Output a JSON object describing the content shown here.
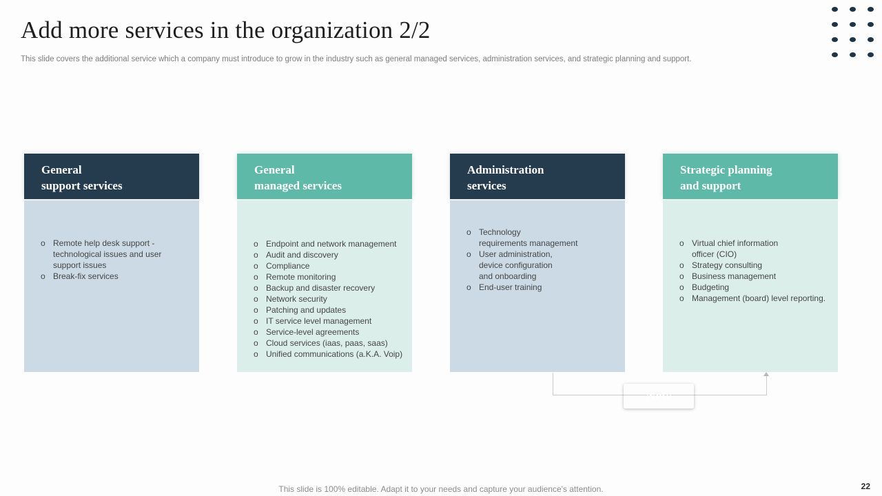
{
  "slide": {
    "title": "Add more services in the organization 2/2",
    "subtitle": "This slide covers the additional service which a company must introduce to grow in the industry such as general managed services, administration services, and strategic planning and support.",
    "footer": "This slide is 100% editable. Adapt it to your needs and capture your audience's attention.",
    "page_number": "22",
    "new_label": "New",
    "bullet_marker": "o"
  },
  "colors": {
    "navy": "#253C4F",
    "teal": "#5FB9A8",
    "navy_body": "#CBDAE4",
    "teal_body": "#DCEEE9",
    "dots": "#1D3447",
    "connector": "#C9CCCC"
  },
  "decoration_dots": {
    "rows": 4,
    "cols": 3
  },
  "columns": [
    {
      "theme": "navy",
      "title": "General\nsupport services",
      "items": [
        "Remote help desk support -\ntechnological issues and user\nsupport issues",
        "Break-fix services"
      ]
    },
    {
      "theme": "teal",
      "title": "General\nmanaged services",
      "items": [
        "Endpoint and network management",
        "Audit and discovery",
        "Compliance",
        "Remote monitoring",
        "Backup and disaster recovery",
        "Network security",
        "Patching and updates",
        "IT service level management",
        "Service-level agreements",
        "Cloud services (iaas, paas, saas)",
        "Unified communications (a.K.A. Voip)"
      ]
    },
    {
      "theme": "navy",
      "title": "Administration\nservices",
      "items": [
        "Technology\nrequirements management",
        "User administration,\ndevice configuration\nand onboarding",
        "End-user training"
      ]
    },
    {
      "theme": "teal",
      "title": "Strategic planning\nand support",
      "items": [
        "Virtual chief information\nofficer (CIO)",
        "Strategy consulting",
        "Business management",
        "Budgeting",
        "Management (board) level reporting."
      ]
    }
  ]
}
